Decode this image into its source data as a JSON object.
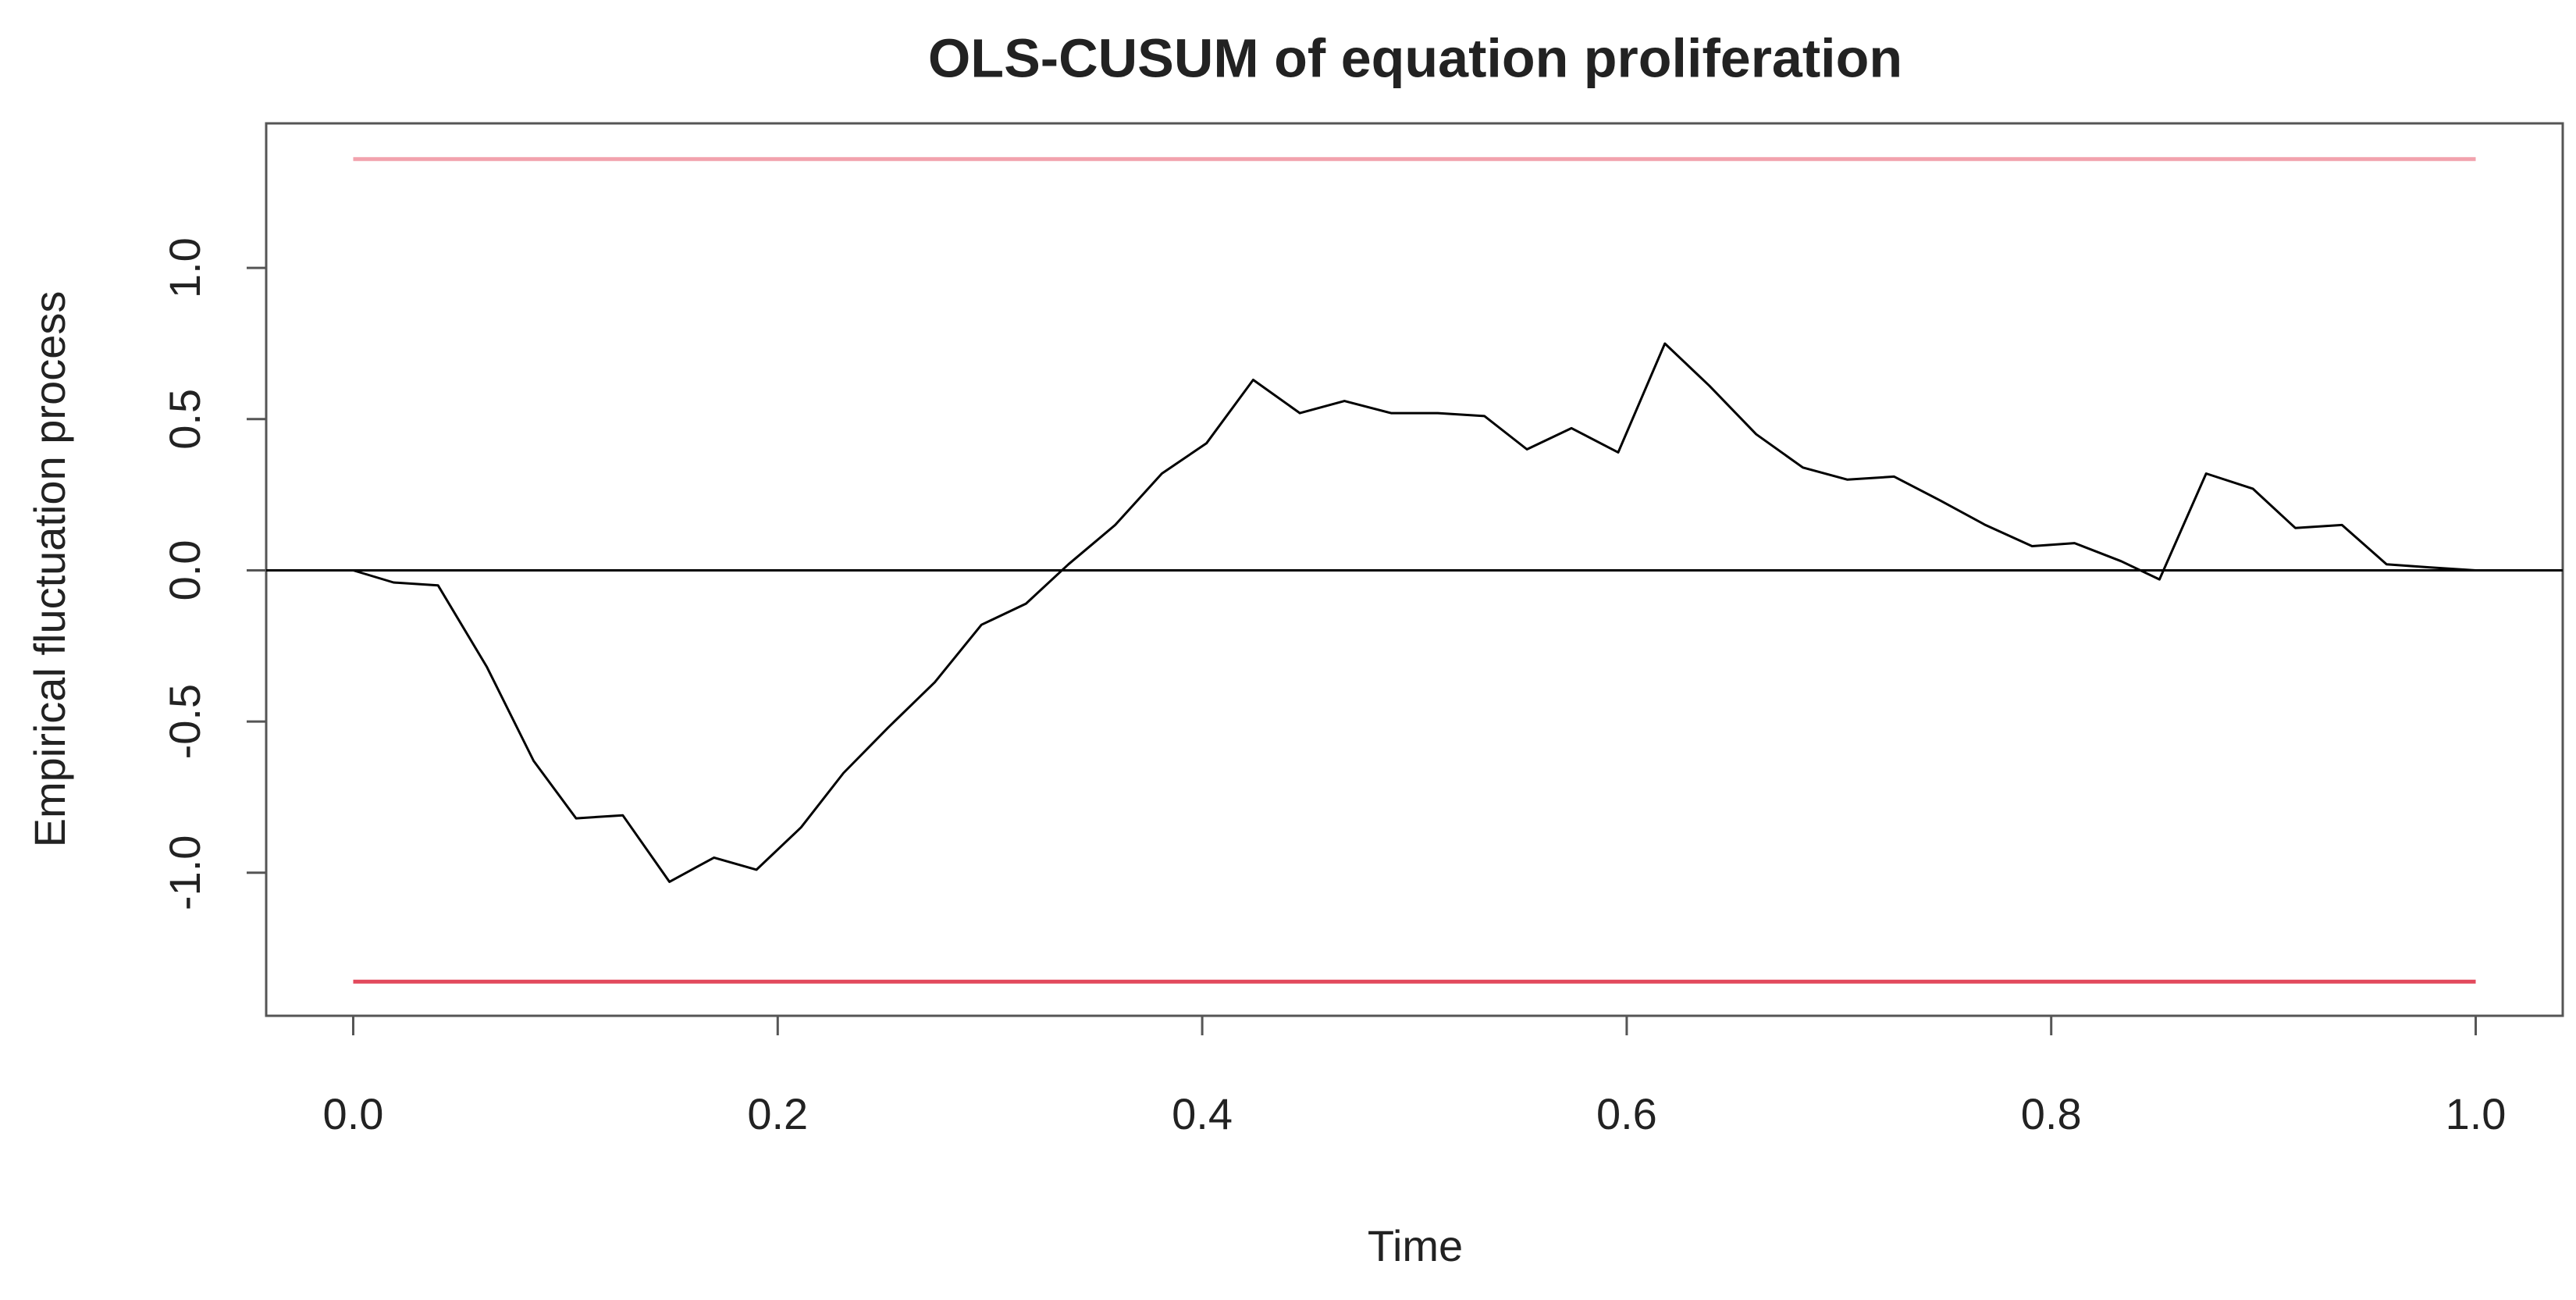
{
  "chart_data": {
    "type": "line",
    "title": "OLS-CUSUM of equation proliferation",
    "xlabel": "Time",
    "ylabel": "Empirical fluctuation process",
    "x": [
      0,
      0.019,
      0.04,
      0.063,
      0.085,
      0.105,
      0.127,
      0.149,
      0.17,
      0.19,
      0.211,
      0.231,
      0.252,
      0.274,
      0.296,
      0.317,
      0.337,
      0.359,
      0.381,
      0.402,
      0.424,
      0.446,
      0.467,
      0.489,
      0.511,
      0.533,
      0.553,
      0.574,
      0.596,
      0.618,
      0.639,
      0.661,
      0.683,
      0.704,
      0.726,
      0.748,
      0.769,
      0.791,
      0.811,
      0.833,
      0.851,
      0.873,
      0.895,
      0.915,
      0.937,
      0.958,
      0.978,
      1.0
    ],
    "values": [
      0,
      -0.04,
      -0.05,
      -0.32,
      -0.63,
      -0.82,
      -0.81,
      -1.03,
      -0.95,
      -0.99,
      -0.85,
      -0.67,
      -0.52,
      -0.37,
      -0.18,
      -0.11,
      0.02,
      0.15,
      0.32,
      0.42,
      0.63,
      0.52,
      0.56,
      0.52,
      0.52,
      0.51,
      0.4,
      0.47,
      0.39,
      0.75,
      0.61,
      0.45,
      0.34,
      0.3,
      0.31,
      0.23,
      0.15,
      0.08,
      0.09,
      0.03,
      -0.03,
      0.32,
      0.27,
      0.14,
      0.15,
      0.02,
      0.01,
      0
    ],
    "color": "#000000",
    "boundaries": [
      {
        "value": 1.36,
        "color": "#f2a2ad"
      },
      {
        "value": -1.36,
        "color": "#e2495c"
      }
    ],
    "zero_line": {
      "value": 0,
      "color": "#000000"
    },
    "xlim": [
      -0.041,
      1.041
    ],
    "ylim": [
      -1.473,
      1.478
    ],
    "xticks": [
      {
        "value": 0,
        "label": "0.0"
      },
      0.2,
      0.4,
      0.6,
      0.8,
      {
        "value": 1,
        "label": "1.0"
      }
    ],
    "yticks": [
      {
        "value": -1,
        "label": "-1.0"
      },
      -0.5,
      {
        "value": 0,
        "label": "0.0"
      },
      0.5,
      {
        "value": 1,
        "label": "1.0"
      }
    ]
  }
}
